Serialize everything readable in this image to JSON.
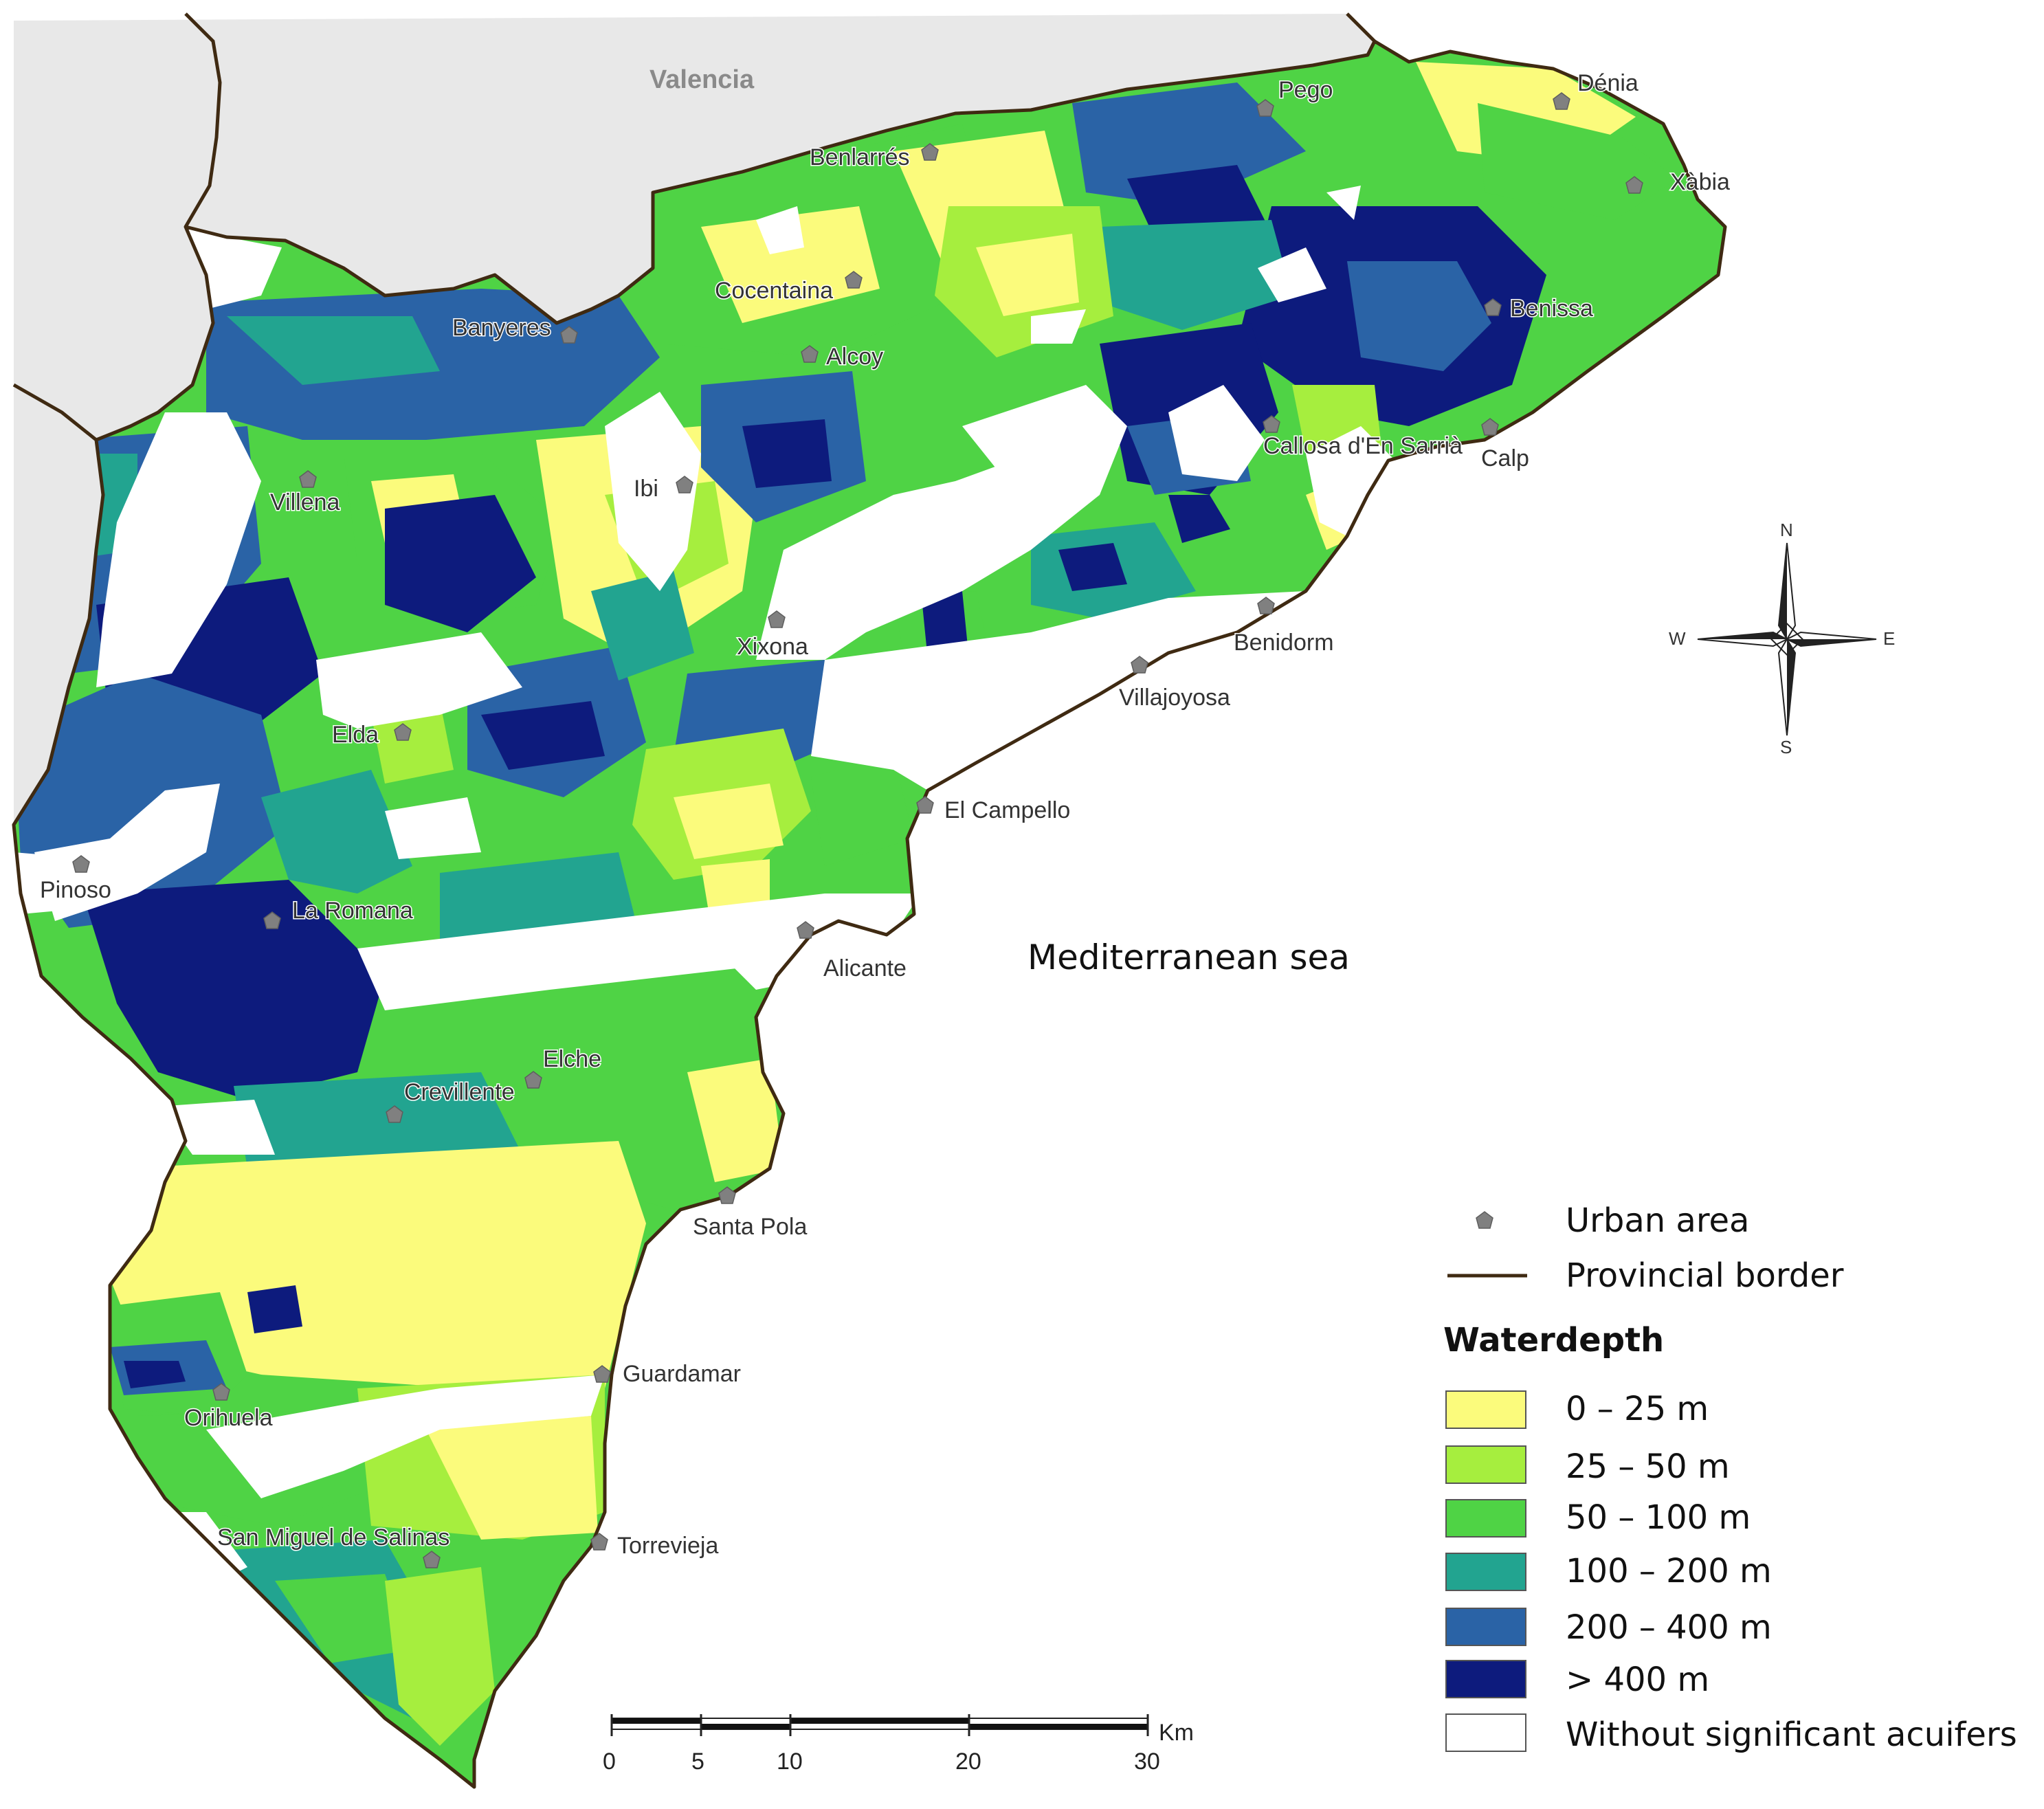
{
  "map": {
    "region_label": "Valencia",
    "sea_label": "Mediterranean sea"
  },
  "towns": [
    {
      "name": "Dénia"
    },
    {
      "name": "Pego"
    },
    {
      "name": "Benlarrés"
    },
    {
      "name": "Xàbia"
    },
    {
      "name": "Cocentaina"
    },
    {
      "name": "Banyeres"
    },
    {
      "name": "Benissa"
    },
    {
      "name": "Alcoy"
    },
    {
      "name": "Callosa d'En Sarrià"
    },
    {
      "name": "Calp"
    },
    {
      "name": "Villena"
    },
    {
      "name": "Ibi"
    },
    {
      "name": "Xixona"
    },
    {
      "name": "Benidorm"
    },
    {
      "name": "Villajoyosa"
    },
    {
      "name": "Elda"
    },
    {
      "name": "El Campello"
    },
    {
      "name": "Pinoso"
    },
    {
      "name": "La Romana"
    },
    {
      "name": "Alicante"
    },
    {
      "name": "Elche"
    },
    {
      "name": "Crevillente"
    },
    {
      "name": "Santa Pola"
    },
    {
      "name": "Guardamar"
    },
    {
      "name": "Orihuela"
    },
    {
      "name": "Torrevieja"
    },
    {
      "name": "San Miguel de Salinas"
    }
  ],
  "compass": {
    "north": "N",
    "south": "S",
    "east": "E",
    "west": "W"
  },
  "scale_bar": {
    "unit": "Km",
    "ticks": [
      "0",
      "5",
      "10",
      "20",
      "30"
    ]
  },
  "legend": {
    "urban_area": "Urban area",
    "provincial_border": "Provincial border",
    "title": "Waterdepth",
    "classes": [
      {
        "label": "0 – 25 m",
        "color": "#fbfb7c"
      },
      {
        "label": "25 – 50 m",
        "color": "#a6ee3e"
      },
      {
        "label": "50 – 100 m",
        "color": "#4fd345"
      },
      {
        "label": "100 – 200 m",
        "color": "#22a490"
      },
      {
        "label": "200 – 400 m",
        "color": "#2a63a6"
      },
      {
        "label": "> 400 m",
        "color": "#0d1b7d"
      },
      {
        "label": "Without significant acuifers",
        "color": "#ffffff"
      }
    ]
  },
  "colors": {
    "land_outside": "#e8e8e8",
    "border": "#3f2a12",
    "urban_marker": "#808080"
  }
}
